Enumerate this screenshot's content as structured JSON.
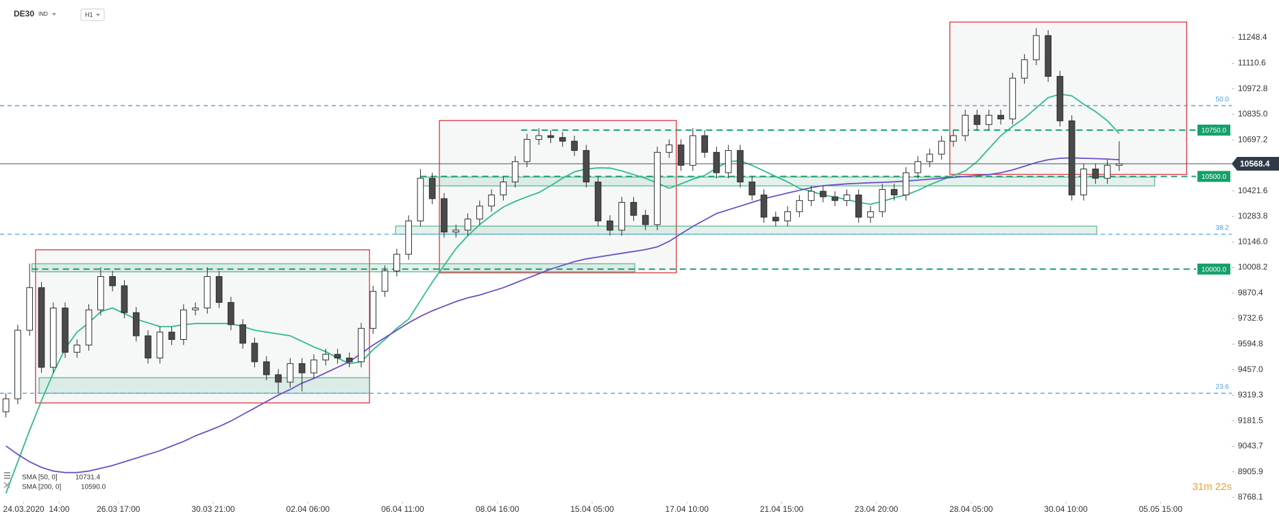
{
  "chart_data": {
    "type": "candlestick",
    "symbol": "DE30",
    "market": "IND",
    "timeframe": "H1",
    "countdown": "31m 22s",
    "grid": false,
    "xlim": [
      0,
      104
    ],
    "ylim": [
      8753,
      11452
    ],
    "xticks": [
      {
        "value": 2,
        "label": "24.03.2020"
      },
      {
        "value": 5,
        "label": "14:00"
      },
      {
        "value": 10,
        "label": "26.03 17:00"
      },
      {
        "value": 18,
        "label": "30.03 21:00"
      },
      {
        "value": 26,
        "label": "02.04 06:00"
      },
      {
        "value": 34,
        "label": "06.04 11:00"
      },
      {
        "value": 42,
        "label": "08.04 16:00"
      },
      {
        "value": 50,
        "label": "15.04 05:00"
      },
      {
        "value": 58,
        "label": "17.04 10:00"
      },
      {
        "value": 66,
        "label": "21.04 15:00"
      },
      {
        "value": 74,
        "label": "23.04 20:00"
      },
      {
        "value": 82,
        "label": "28.04 05:00"
      },
      {
        "value": 90,
        "label": "30.04 10:00"
      },
      {
        "value": 98,
        "label": "05.05 15:00"
      }
    ],
    "yticks": [
      11248.4,
      11110.6,
      10972.8,
      {
        "value": 10835,
        "label": "10835.0"
      },
      10697.2,
      10421.6,
      10283.8,
      {
        "value": 10146,
        "label": "10146.0"
      },
      10008.2,
      9870.4,
      9732.6,
      9594.8,
      {
        "value": 9457,
        "label": "9457.0"
      },
      9319.3,
      9181.5,
      9043.7,
      8905.9,
      8768.1
    ],
    "ohlc": {
      "open": [
        9230,
        9300,
        9670,
        9900,
        9470,
        9790,
        9551,
        9590,
        9780,
        9960,
        9910,
        9765,
        9640,
        9520,
        9660,
        9620,
        9780,
        9790,
        9960,
        9820,
        9700,
        9600,
        9500,
        9430,
        9390,
        9490,
        9440,
        9510,
        9540,
        9520,
        9500,
        9680,
        9880,
        9990,
        10080,
        10260,
        10490,
        10380,
        10200,
        10210,
        10270,
        10340,
        10400,
        10470,
        10580,
        10700,
        10720,
        10710,
        10690,
        10640,
        10470,
        10260,
        10210,
        10360,
        10290,
        10240,
        10630,
        10670,
        10560,
        10720,
        10630,
        10520,
        10640,
        10470,
        10400,
        10280,
        10260,
        10310,
        10370,
        10420,
        10390,
        10370,
        10400,
        10280,
        10310,
        10430,
        10400,
        10520,
        10580,
        10620,
        10690,
        10720,
        10830,
        10780,
        10830,
        10810,
        11030,
        11130,
        11260,
        11040,
        10800,
        10400,
        10540,
        10490,
        10560
      ],
      "high": [
        9330,
        9700,
        10030,
        9930,
        9820,
        9820,
        9620,
        9810,
        10010,
        9990,
        9940,
        9795,
        9670,
        9690,
        9690,
        9810,
        9820,
        10010,
        9990,
        9850,
        9730,
        9630,
        9530,
        9460,
        9520,
        9520,
        9540,
        9570,
        9570,
        9550,
        9710,
        9910,
        10020,
        10110,
        10290,
        10540,
        10520,
        10410,
        10240,
        10300,
        10370,
        10430,
        10500,
        10610,
        10730,
        10760,
        10750,
        10740,
        10720,
        10670,
        10500,
        10290,
        10390,
        10390,
        10320,
        10660,
        10700,
        10700,
        10760,
        10750,
        10660,
        10670,
        10670,
        10500,
        10430,
        10310,
        10340,
        10400,
        10450,
        10450,
        10420,
        10430,
        10430,
        10340,
        10460,
        10460,
        10550,
        10610,
        10650,
        10720,
        10750,
        10860,
        10860,
        10860,
        10860,
        11060,
        11160,
        11300,
        11290,
        11070,
        10830,
        10570,
        10570,
        10590,
        10690
      ],
      "low": [
        9200,
        9270,
        9640,
        9440,
        9440,
        9521,
        9521,
        9560,
        9750,
        9880,
        9735,
        9610,
        9490,
        9490,
        9590,
        9590,
        9750,
        9760,
        9790,
        9670,
        9570,
        9470,
        9400,
        9330,
        9360,
        9340,
        9410,
        9480,
        9490,
        9470,
        9470,
        9650,
        9850,
        9960,
        10050,
        10230,
        10350,
        10170,
        10170,
        10180,
        10240,
        10310,
        10370,
        10440,
        10550,
        10670,
        10680,
        10660,
        10610,
        10440,
        10230,
        10180,
        10180,
        10260,
        10210,
        10210,
        10600,
        10530,
        10530,
        10600,
        10490,
        10490,
        10440,
        10370,
        10250,
        10230,
        10230,
        10280,
        10340,
        10360,
        10340,
        10340,
        10250,
        10250,
        10280,
        10370,
        10370,
        10490,
        10550,
        10590,
        10660,
        10690,
        10750,
        10750,
        10780,
        10780,
        11000,
        11100,
        11010,
        10770,
        10370,
        10370,
        10460,
        10460,
        10530
      ],
      "close": [
        9300,
        9670,
        9900,
        9470,
        9790,
        9551,
        9590,
        9780,
        9960,
        9910,
        9765,
        9640,
        9520,
        9660,
        9620,
        9780,
        9790,
        9960,
        9820,
        9700,
        9600,
        9500,
        9430,
        9390,
        9490,
        9440,
        9510,
        9540,
        9520,
        9500,
        9680,
        9880,
        9990,
        10080,
        10260,
        10490,
        10380,
        10200,
        10210,
        10270,
        10340,
        10400,
        10470,
        10580,
        10700,
        10720,
        10710,
        10690,
        10640,
        10470,
        10260,
        10210,
        10360,
        10290,
        10240,
        10630,
        10670,
        10560,
        10720,
        10630,
        10520,
        10640,
        10470,
        10400,
        10280,
        10260,
        10310,
        10370,
        10420,
        10390,
        10370,
        10400,
        10280,
        10310,
        10430,
        10400,
        10520,
        10580,
        10620,
        10690,
        10720,
        10830,
        10780,
        10830,
        10810,
        11030,
        11130,
        11260,
        11040,
        10800,
        10400,
        10540,
        10490,
        10560,
        10568.4
      ],
      "up_color": "#ffffff",
      "down_color": "#4a4a4a",
      "border_color": "#2b2b2b"
    },
    "last_price": 10568.4,
    "indicators": [
      {
        "name": "SMA [50, 0]",
        "color": "#2dbb8b",
        "legend_value": 10731.4,
        "values": [
          8790,
          8960,
          9130,
          9290,
          9440,
          9570,
          9660,
          9710,
          9770,
          9790,
          9760,
          9730,
          9710,
          9690,
          9690,
          9700,
          9706,
          9706,
          9706,
          9706,
          9690,
          9670,
          9660,
          9650,
          9640,
          9610,
          9580,
          9555,
          9520,
          9490,
          9500,
          9565,
          9620,
          9680,
          9730,
          9830,
          9930,
          10020,
          10110,
          10180,
          10240,
          10290,
          10335,
          10365,
          10390,
          10413,
          10450,
          10490,
          10525,
          10540,
          10546,
          10545,
          10530,
          10510,
          10490,
          10465,
          10436,
          10460,
          10485,
          10505,
          10545,
          10580,
          10585,
          10560,
          10530,
          10500,
          10470,
          10436,
          10420,
          10400,
          10388,
          10375,
          10360,
          10350,
          10365,
          10385,
          10400,
          10425,
          10455,
          10480,
          10505,
          10530,
          10580,
          10650,
          10720,
          10770,
          10815,
          10870,
          10925,
          10944,
          10935,
          10890,
          10850,
          10800,
          10731.4
        ]
      },
      {
        "name": "SMA [200, 0]",
        "color": "#6a4fc4",
        "legend_value": {
          "value": 10590,
          "label": "10590.0"
        },
        "values": [
          9046,
          9000,
          8960,
          8930,
          8910,
          8902,
          8902,
          8910,
          8925,
          8940,
          8960,
          8980,
          9000,
          9020,
          9045,
          9070,
          9100,
          9125,
          9150,
          9180,
          9215,
          9250,
          9285,
          9320,
          9350,
          9385,
          9410,
          9440,
          9470,
          9500,
          9545,
          9590,
          9630,
          9670,
          9710,
          9745,
          9775,
          9800,
          9825,
          9845,
          9860,
          9880,
          9900,
          9925,
          9950,
          9975,
          10000,
          10020,
          10040,
          10055,
          10065,
          10075,
          10085,
          10095,
          10105,
          10120,
          10150,
          10190,
          10230,
          10265,
          10300,
          10320,
          10340,
          10360,
          10380,
          10395,
          10410,
          10425,
          10440,
          10450,
          10455,
          10460,
          10463,
          10466,
          10468,
          10471,
          10475,
          10480,
          10485,
          10490,
          10495,
          10500,
          10505,
          10510,
          10520,
          10535,
          10555,
          10575,
          10590,
          10598,
          10600,
          10598,
          10596,
          10594,
          10590
        ]
      }
    ],
    "fib_levels": [
      {
        "label": "50.0",
        "price": 10882
      },
      {
        "label": "38.2",
        "price": 10188
      },
      {
        "label": "23.6",
        "price": 9330
      }
    ],
    "fib_color": "#4a9fe0",
    "price_levels": [
      {
        "value": 10750,
        "label": "10750.0",
        "from": 44
      },
      {
        "value": 10500,
        "label": "10500.0",
        "from": 35.5
      },
      {
        "value": 10000,
        "label": "10000.0",
        "from": 2.7
      }
    ],
    "level_color": "#14a06a",
    "boxes": [
      {
        "x": [
          3,
          31.2
        ],
        "y": [
          9278,
          10104
        ]
      },
      {
        "x": [
          37.1,
          57.1
        ],
        "y": [
          9980,
          10802
        ]
      },
      {
        "x": [
          80.2,
          100.2
        ],
        "y": [
          10511,
          11333
        ]
      }
    ],
    "box_color": "#d9363e",
    "zones": [
      {
        "x": [
          2.7,
          53.6
        ],
        "y": [
          9985,
          10029
        ]
      },
      {
        "x": [
          35.5,
          97.5
        ],
        "y": [
          10449,
          10497
        ]
      },
      {
        "x": [
          33.4,
          92.6
        ],
        "y": [
          10188,
          10232
        ]
      },
      {
        "x": [
          3.3,
          31.2
        ],
        "y": [
          9330,
          9414
        ]
      }
    ],
    "zone_color": "#3aa57a"
  }
}
